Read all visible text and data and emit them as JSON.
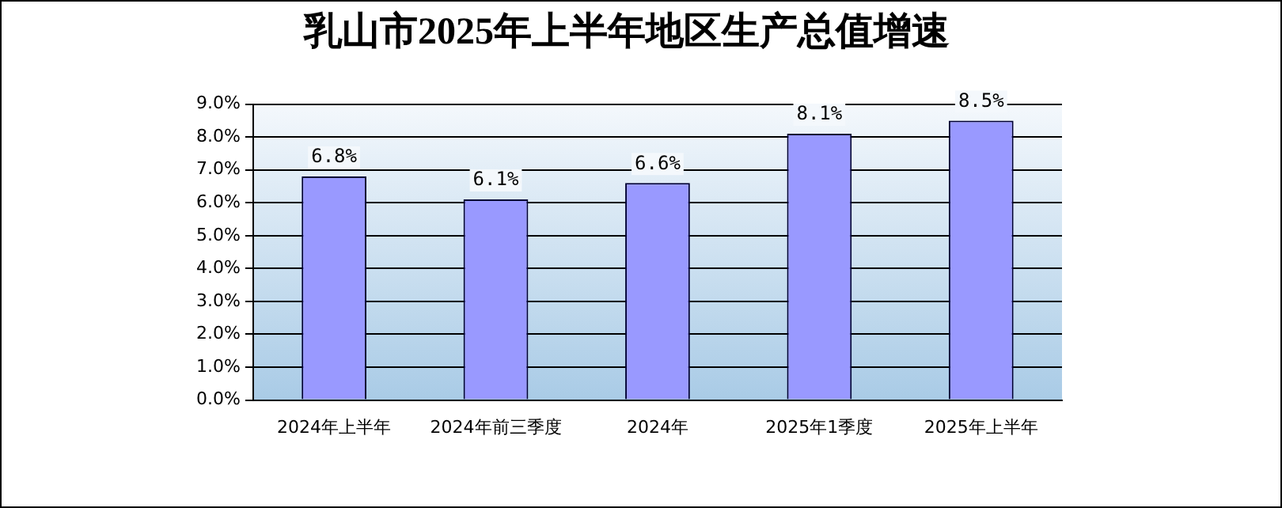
{
  "chart_data": {
    "type": "bar",
    "title": "乳山市2025年上半年地区生产总值增速",
    "categories": [
      "2024年上半年",
      "2024年前三季度",
      "2024年",
      "2025年1季度",
      "2025年上半年"
    ],
    "values": [
      6.8,
      6.1,
      6.6,
      8.1,
      8.5
    ],
    "value_labels": [
      "6.8%",
      "6.1%",
      "6.6%",
      "8.1%",
      "8.5%"
    ],
    "color": "#9999ff",
    "ylim": [
      0,
      9
    ],
    "yticks": [
      {
        "value": 0,
        "label": "0.0%"
      },
      {
        "value": 1,
        "label": "1.0%"
      },
      {
        "value": 2,
        "label": "2.0%"
      },
      {
        "value": 3,
        "label": "3.0%"
      },
      {
        "value": 4,
        "label": "4.0%"
      },
      {
        "value": 5,
        "label": "5.0%"
      },
      {
        "value": 6,
        "label": "6.0%"
      },
      {
        "value": 7,
        "label": "7.0%"
      },
      {
        "value": 8,
        "label": "8.0%"
      },
      {
        "value": 9,
        "label": "9.0%"
      }
    ],
    "grid": "y",
    "legend": false
  }
}
